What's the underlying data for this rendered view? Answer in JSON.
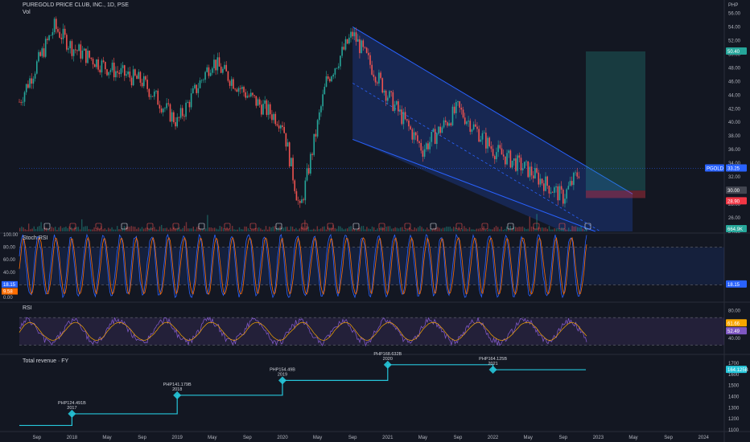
{
  "header": {
    "title": "PUREGOLD PRICE CLUB, INC., 1D, PSE",
    "vol_label": "Vol",
    "currency": "PHP"
  },
  "price_axis": {
    "ticks": [
      "56.00",
      "54.00",
      "52.00",
      "50.00",
      "48.00",
      "46.00",
      "44.00",
      "42.00",
      "40.00",
      "38.00",
      "36.00",
      "34.00",
      "32.00",
      "30.00",
      "28.00",
      "26.00",
      "24.00"
    ],
    "badges": {
      "target": "50.40",
      "current": "33.25",
      "ticker": "PGOLD",
      "entry": "30.00",
      "stop": "28.90",
      "volume": "664.9K"
    }
  },
  "stoch_rsi": {
    "title": "Stoch RSI",
    "ticks": [
      "100.00",
      "80.00",
      "60.00",
      "40.00",
      "20.00",
      "0.00"
    ],
    "badges": [
      "18.15",
      "9.58"
    ]
  },
  "rsi": {
    "title": "RSI",
    "ticks": [
      "80.00",
      "60.00",
      "40.00"
    ],
    "badges": [
      "61.66",
      "52.49"
    ]
  },
  "revenue": {
    "title": "Total revenue · FY",
    "ticks": [
      "1700",
      "1600",
      "1500",
      "1400",
      "1300",
      "1200",
      "1100"
    ],
    "badge": "164.125B"
  },
  "time_axis": {
    "labels": [
      "Sep",
      "2018",
      "May",
      "Sep",
      "2019",
      "May",
      "Sep",
      "2020",
      "May",
      "Sep",
      "2021",
      "May",
      "Sep",
      "2022",
      "May",
      "Sep",
      "2023",
      "May",
      "Sep",
      "2024"
    ]
  },
  "colors": {
    "bg": "#131722",
    "up": "#26a69a",
    "down": "#ef5350",
    "channel": "#2962ff",
    "target": "#26a69a",
    "stop": "#f23645",
    "stoch_k": "#2962ff",
    "stoch_d": "#ff6d00",
    "rsi": "#7e57c2",
    "rev": "#26c6da"
  },
  "chart_data": [
    {
      "type": "line",
      "title": "PUREGOLD PRICE CLUB, INC., 1D, PSE",
      "ylabel": "PHP",
      "x": [
        "2017-07",
        "2017-11",
        "2018-01",
        "2018-05",
        "2018-09",
        "2019-01",
        "2019-05",
        "2019-09",
        "2020-01",
        "2020-03",
        "2020-06",
        "2020-09",
        "2021-01",
        "2021-05",
        "2021-09",
        "2022-01",
        "2022-05",
        "2022-09",
        "2022-11"
      ],
      "values": [
        43,
        54,
        51,
        48,
        46,
        40,
        49,
        44,
        40,
        27,
        46,
        53,
        44,
        36,
        42,
        36,
        33,
        29,
        33.25
      ],
      "ylim": [
        24,
        57
      ],
      "annotations": [
        "Descending channel",
        "Long position: entry 30.00, target 50.40, stop 28.90"
      ]
    },
    {
      "type": "line",
      "title": "Stoch RSI",
      "ylim": [
        0,
        100
      ],
      "series": [
        {
          "values": [
            18.15
          ]
        },
        {
          "values": [
            9.58
          ]
        }
      ]
    },
    {
      "type": "line",
      "title": "RSI",
      "ylim": [
        20,
        90
      ],
      "series": [
        {
          "values": [
            61.66
          ]
        },
        {
          "values": [
            52.49
          ]
        }
      ]
    },
    {
      "type": "line",
      "title": "Total revenue · FY",
      "ylim": [
        1100,
        1750
      ],
      "categories": [
        "2017",
        "2018",
        "2019",
        "2020",
        "2021"
      ],
      "values": [
        124.491,
        141.179,
        154.49,
        168.632,
        164.125
      ],
      "labels": [
        "PHP124.491B",
        "PHP141.179B",
        "PHP154.49B",
        "PHP168.632B",
        "PHP164.125B"
      ]
    }
  ]
}
